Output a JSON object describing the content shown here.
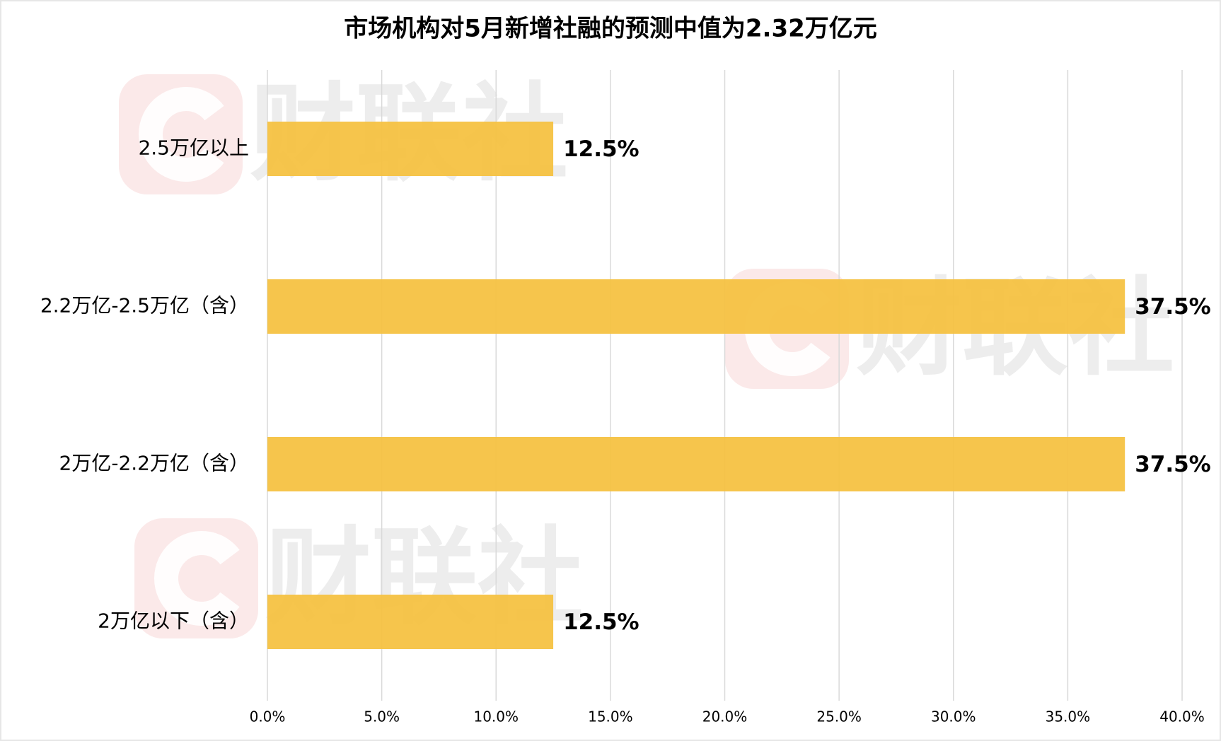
{
  "chart_data": {
    "type": "hbar",
    "title": "市场机构对5月新增社融的预测中值为2.32万亿元",
    "watermark": "财联社",
    "categories": [
      "2.5万亿以上",
      "2.2万亿-2.5万亿（含）",
      "2万亿-2.2万亿（含）",
      "2万亿以下（含）"
    ],
    "values": [
      12.5,
      37.5,
      37.5,
      12.5
    ],
    "value_labels": [
      "12.5%",
      "37.5%",
      "37.5%",
      "12.5%"
    ],
    "color": "#f5c242",
    "xlim": [
      0,
      40
    ],
    "xticks": [
      {
        "value": 0,
        "label": "0.0%"
      },
      {
        "value": 5,
        "label": "5.0%"
      },
      {
        "value": 10,
        "label": "10.0%"
      },
      {
        "value": 15,
        "label": "15.0%"
      },
      {
        "value": 20,
        "label": "20.0%"
      },
      {
        "value": 25,
        "label": "25.0%"
      },
      {
        "value": 30,
        "label": "30.0%"
      },
      {
        "value": 35,
        "label": "35.0%"
      },
      {
        "value": 40,
        "label": "40.0%"
      }
    ],
    "grid": true
  }
}
